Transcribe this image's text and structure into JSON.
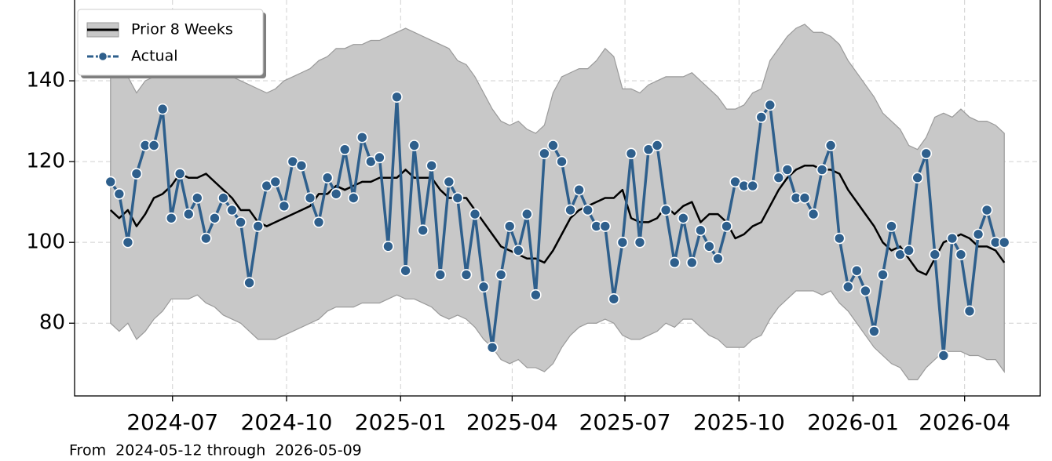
{
  "chart_data": {
    "type": "line",
    "annotation": "From  2024-05-12 through  2026-05-09",
    "x": [
      "2024-05-12",
      "2024-05-19",
      "2024-05-26",
      "2024-06-02",
      "2024-06-09",
      "2024-06-16",
      "2024-06-23",
      "2024-06-30",
      "2024-07-07",
      "2024-07-14",
      "2024-07-21",
      "2024-07-28",
      "2024-08-04",
      "2024-08-11",
      "2024-08-18",
      "2024-08-25",
      "2024-09-01",
      "2024-09-08",
      "2024-09-15",
      "2024-09-22",
      "2024-09-29",
      "2024-10-06",
      "2024-10-13",
      "2024-10-20",
      "2024-10-27",
      "2024-11-03",
      "2024-11-10",
      "2024-11-17",
      "2024-11-24",
      "2024-12-01",
      "2024-12-08",
      "2024-12-15",
      "2024-12-22",
      "2024-12-29",
      "2025-01-05",
      "2025-01-12",
      "2025-01-19",
      "2025-01-26",
      "2025-02-02",
      "2025-02-09",
      "2025-02-16",
      "2025-02-23",
      "2025-03-02",
      "2025-03-09",
      "2025-03-16",
      "2025-03-23",
      "2025-03-30",
      "2025-04-06",
      "2025-04-13",
      "2025-04-20",
      "2025-04-27",
      "2025-05-04",
      "2025-05-11",
      "2025-05-18",
      "2025-05-25",
      "2025-06-01",
      "2025-06-08",
      "2025-06-15",
      "2025-06-22",
      "2025-06-29",
      "2025-07-06",
      "2025-07-13",
      "2025-07-20",
      "2025-07-27",
      "2025-08-03",
      "2025-08-10",
      "2025-08-17",
      "2025-08-24",
      "2025-08-31",
      "2025-09-07",
      "2025-09-14",
      "2025-09-21",
      "2025-09-28",
      "2025-10-05",
      "2025-10-12",
      "2025-10-19",
      "2025-10-26",
      "2025-11-02",
      "2025-11-09",
      "2025-11-16",
      "2025-11-23",
      "2025-11-30",
      "2025-12-07",
      "2025-12-14",
      "2025-12-21",
      "2025-12-28",
      "2026-01-04",
      "2026-01-11",
      "2026-01-18",
      "2026-01-25",
      "2026-02-01",
      "2026-02-08",
      "2026-02-15",
      "2026-02-22",
      "2026-03-01",
      "2026-03-08",
      "2026-03-15",
      "2026-03-22",
      "2026-03-29",
      "2026-04-05",
      "2026-04-12",
      "2026-04-19",
      "2026-04-26",
      "2026-05-03"
    ],
    "series": [
      {
        "name": "Prior 8 Weeks",
        "color": "#000000",
        "band_color": "#c8c8c8",
        "values": [
          108,
          106,
          108,
          104,
          107,
          111,
          112,
          114,
          117,
          116,
          116,
          117,
          115,
          113,
          111,
          108,
          108,
          105,
          104,
          105,
          106,
          107,
          108,
          109,
          112,
          112,
          114,
          113,
          114,
          115,
          115,
          116,
          116,
          116,
          118,
          116,
          116,
          116,
          113,
          111,
          111,
          111,
          108,
          105,
          102,
          99,
          98,
          97,
          96,
          96,
          95,
          98,
          102,
          106,
          108,
          109,
          110,
          111,
          111,
          113,
          106,
          105,
          105,
          106,
          109,
          107,
          109,
          110,
          105,
          107,
          107,
          105,
          101,
          102,
          104,
          105,
          109,
          113,
          116,
          118,
          119,
          119,
          118,
          118,
          117,
          113,
          110,
          107,
          104,
          100,
          98,
          99,
          96,
          93,
          92,
          96,
          100,
          101,
          102,
          101,
          99,
          99,
          98,
          95
        ],
        "upper": [
          141,
          142,
          141,
          137,
          140,
          141,
          143,
          143,
          144,
          144,
          144,
          144,
          143,
          142,
          141,
          140,
          139,
          138,
          137,
          138,
          140,
          141,
          142,
          143,
          145,
          146,
          148,
          148,
          149,
          149,
          150,
          150,
          151,
          152,
          153,
          152,
          151,
          150,
          149,
          148,
          145,
          144,
          141,
          137,
          133,
          130,
          129,
          130,
          128,
          127,
          129,
          137,
          141,
          142,
          143,
          143,
          145,
          148,
          146,
          138,
          138,
          137,
          139,
          140,
          141,
          141,
          141,
          142,
          140,
          138,
          136,
          133,
          133,
          134,
          137,
          138,
          145,
          148,
          151,
          153,
          154,
          152,
          152,
          151,
          149,
          145,
          142,
          139,
          136,
          132,
          130,
          128,
          124,
          123,
          126,
          131,
          132,
          131,
          133,
          131,
          130,
          130,
          129,
          127
        ],
        "lower": [
          80,
          78,
          80,
          76,
          78,
          81,
          83,
          86,
          86,
          86,
          87,
          85,
          84,
          82,
          81,
          80,
          78,
          76,
          76,
          76,
          77,
          78,
          79,
          80,
          81,
          83,
          84,
          84,
          84,
          85,
          85,
          85,
          86,
          87,
          86,
          86,
          85,
          84,
          82,
          81,
          82,
          81,
          79,
          76,
          74,
          71,
          70,
          71,
          69,
          69,
          68,
          70,
          74,
          77,
          79,
          80,
          80,
          81,
          80,
          77,
          76,
          76,
          77,
          78,
          80,
          79,
          81,
          81,
          79,
          77,
          76,
          74,
          74,
          74,
          76,
          77,
          81,
          84,
          86,
          88,
          88,
          88,
          87,
          88,
          85,
          83,
          80,
          77,
          74,
          72,
          70,
          69,
          66,
          66,
          69,
          71,
          73,
          73,
          73,
          72,
          72,
          71,
          71,
          68
        ]
      },
      {
        "name": "Actual",
        "color": "#2e5f8c",
        "values": [
          115,
          112,
          100,
          117,
          124,
          124,
          133,
          106,
          117,
          107,
          111,
          101,
          106,
          111,
          108,
          105,
          90,
          104,
          114,
          115,
          109,
          120,
          119,
          111,
          105,
          116,
          112,
          123,
          111,
          126,
          120,
          121,
          99,
          136,
          93,
          124,
          103,
          119,
          92,
          115,
          111,
          92,
          107,
          89,
          74,
          92,
          104,
          98,
          107,
          87,
          122,
          124,
          120,
          108,
          113,
          108,
          104,
          104,
          86,
          100,
          122,
          100,
          123,
          124,
          108,
          95,
          106,
          95,
          103,
          99,
          96,
          104,
          115,
          114,
          114,
          131,
          134,
          116,
          118,
          111,
          111,
          107,
          118,
          124,
          101,
          89,
          93,
          88,
          78,
          92,
          104,
          97,
          98,
          116,
          122,
          97,
          72,
          101,
          97,
          83,
          102,
          108,
          100,
          100
        ]
      }
    ],
    "xlim": [
      "2024-04-13",
      "2026-06-01"
    ],
    "xticks": [
      {
        "value": "2024-07-01",
        "label": "2024-07"
      },
      {
        "value": "2024-10-01",
        "label": "2024-10"
      },
      {
        "value": "2025-01-01",
        "label": "2025-01"
      },
      {
        "value": "2025-04-01",
        "label": "2025-04"
      },
      {
        "value": "2025-07-01",
        "label": "2025-07"
      },
      {
        "value": "2025-10-01",
        "label": "2025-10"
      },
      {
        "value": "2026-01-01",
        "label": "2026-01"
      },
      {
        "value": "2026-04-01",
        "label": "2026-04"
      }
    ],
    "ylim": [
      62,
      160
    ],
    "yticks": [
      80,
      100,
      120,
      140
    ],
    "grid": true,
    "legend": "upper left"
  }
}
